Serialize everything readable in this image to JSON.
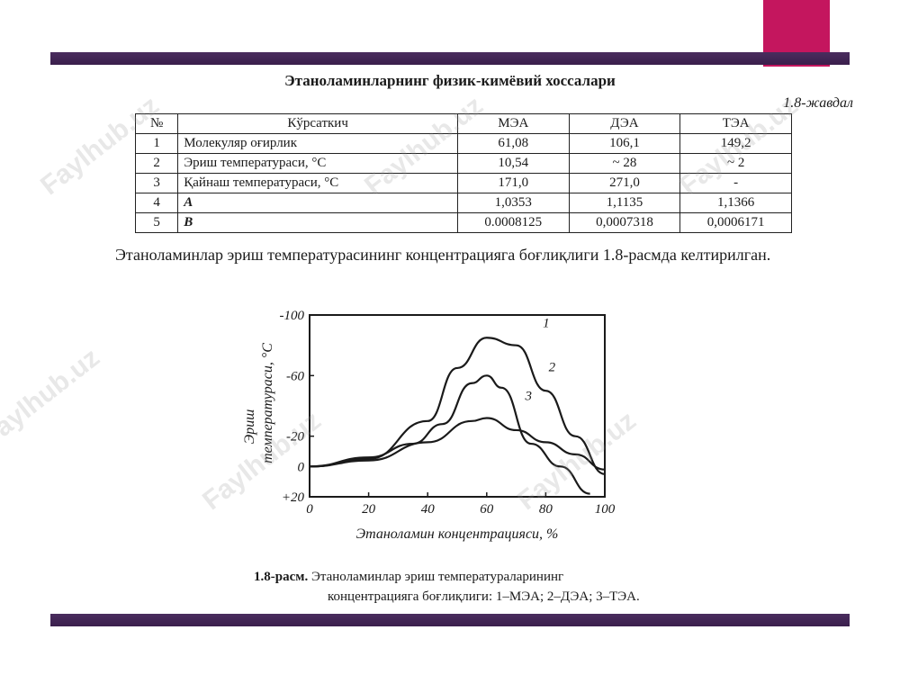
{
  "doc": {
    "title": "Этаноламинларнинг физик-кимёвий хоссалари",
    "table_caption": "1.8-жавдал",
    "table": {
      "headers": [
        "№",
        "Кўрсаткич",
        "МЭА",
        "ДЭА",
        "ТЭА"
      ],
      "rows": [
        [
          "1",
          "Молекуляр оғирлик",
          "61,08",
          "106,1",
          "149,2"
        ],
        [
          "2",
          "Эриш температураси, °С",
          "10,54",
          "~ 28",
          "~ 2"
        ],
        [
          "3",
          "Қайнаш температураси, °С",
          "171,0",
          "271,0",
          "-"
        ],
        [
          "4",
          "A",
          "1,0353",
          "1,1135",
          "1,1366"
        ],
        [
          "5",
          "B",
          "0.0008125",
          "0,0007318",
          "0,0006171"
        ]
      ]
    },
    "paragraph": "Этаноламинлар эриш температурасининг концентрацияга боғлиқлиги 1.8-расмда келтирилган.",
    "figure_caption_label": "1.8-расм.",
    "figure_caption_line1": "Этаноламинлар эриш температураларининг",
    "figure_caption_line2": "концентрацияга боғлиқлиги: 1–МЭА; 2–ДЭА; 3–ТЭА."
  },
  "watermark": "Faylhub.uz",
  "chart_data": {
    "type": "line",
    "xlabel": "Этаноламин концентрацияси, %",
    "ylabel_line1": "Эриш",
    "ylabel_line2": "температураси, °С",
    "x_ticks": [
      "0",
      "20",
      "40",
      "60",
      "80",
      "100"
    ],
    "y_ticks": [
      "-100",
      "-60",
      "-20",
      "0",
      "+20"
    ],
    "xlim": [
      0,
      100
    ],
    "ylim": [
      20,
      -100
    ],
    "series": [
      {
        "name": "1",
        "x": [
          0,
          20,
          40,
          50,
          60,
          70,
          80,
          90,
          100
        ],
        "y": [
          0,
          -5,
          -30,
          -65,
          -85,
          -80,
          -50,
          -20,
          5
        ]
      },
      {
        "name": "2",
        "x": [
          0,
          20,
          35,
          45,
          55,
          60,
          65,
          75,
          85,
          95
        ],
        "y": [
          0,
          -6,
          -15,
          -28,
          -55,
          -60,
          -52,
          -15,
          0,
          18
        ]
      },
      {
        "name": "3",
        "x": [
          0,
          20,
          40,
          55,
          60,
          70,
          80,
          90,
          100
        ],
        "y": [
          0,
          -4,
          -16,
          -30,
          -32,
          -24,
          -16,
          -8,
          2
        ]
      }
    ]
  }
}
